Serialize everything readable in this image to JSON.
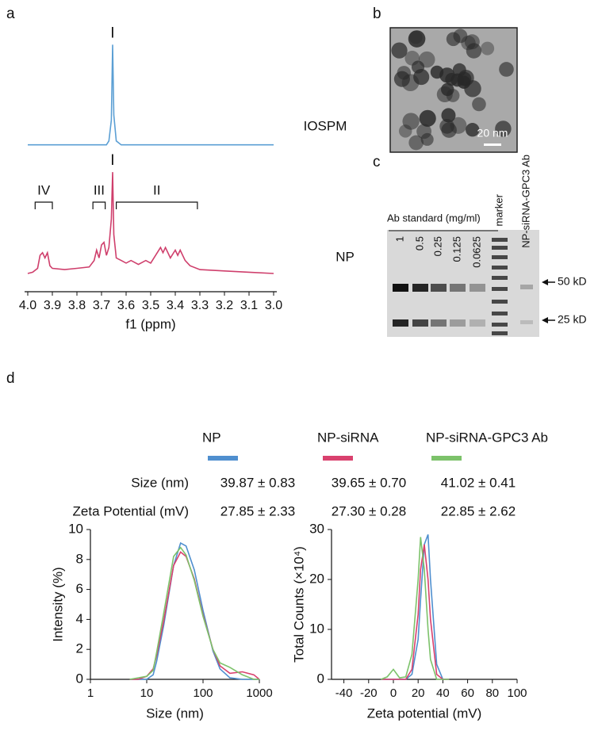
{
  "panels": [
    "a",
    "b",
    "c",
    "d"
  ],
  "tem": {
    "scale_bar": "20 nm"
  },
  "gel": {
    "title": "Ab standard (mg/ml)",
    "lanes": [
      "1",
      "0.5",
      "0.25",
      "0.125",
      "0.0625",
      "marker",
      "NP-siRNA-GPC3 Ab"
    ],
    "markers": [
      "50 kD",
      "25 kD"
    ]
  },
  "table": {
    "rows": [
      [
        "Size (nm)",
        "39.87 ± 0.83",
        "39.65 ± 0.70",
        "41.02 ± 0.41"
      ],
      [
        "Zeta Potential (mV)",
        "27.85 ± 2.33",
        "27.30 ± 0.28",
        "22.85 ± 2.62"
      ]
    ]
  },
  "chart_data": [
    {
      "type": "line",
      "xlabel": "f1 (ppm)",
      "x": [
        4.0,
        3.98,
        3.96,
        3.95,
        3.94,
        3.93,
        3.92,
        3.91,
        3.9,
        3.85,
        3.8,
        3.75,
        3.73,
        3.72,
        3.71,
        3.7,
        3.69,
        3.68,
        3.67,
        3.66,
        3.655,
        3.65,
        3.64,
        3.62,
        3.6,
        3.58,
        3.55,
        3.52,
        3.5,
        3.48,
        3.46,
        3.45,
        3.44,
        3.42,
        3.4,
        3.39,
        3.38,
        3.36,
        3.34,
        3.3,
        3.2,
        3.1,
        3.0
      ],
      "xlim": [
        4.0,
        3.0
      ],
      "xticks": [
        {
          "value": 4.0,
          "label": "4.0"
        },
        3.9,
        3.8,
        3.7,
        3.6,
        3.5,
        3.4,
        3.3,
        3.2,
        3.1,
        {
          "value": 3.0,
          "label": "3.0"
        }
      ],
      "ylim": [
        0,
        100
      ],
      "series": [
        {
          "name": "IOSPM",
          "color": "#5b9fd4",
          "peak_label": {
            "label": "I",
            "x": 3.655
          },
          "values": [
            56.5,
            56.5,
            56.5,
            56.5,
            56.5,
            56.5,
            56.5,
            56.5,
            56.5,
            56.5,
            56.5,
            56.5,
            56.5,
            56.5,
            56.5,
            56.5,
            56.5,
            56.5,
            58,
            66,
            95,
            68,
            58,
            56.5,
            56.5,
            56.5,
            56.5,
            56.5,
            56.5,
            56.5,
            56.5,
            56.5,
            56.5,
            56.5,
            56.5,
            56.5,
            56.5,
            56.5,
            56.5,
            56.5,
            56.5,
            56.5,
            56.5
          ]
        },
        {
          "name": "NP",
          "color": "#cf3f6c",
          "peak_label": {
            "label": "I",
            "x": 3.655
          },
          "values": [
            7,
            7.5,
            9,
            14,
            15,
            13,
            15,
            10,
            9,
            8.5,
            9,
            9.5,
            12,
            16,
            13,
            18,
            19,
            14,
            17,
            28,
            46,
            22,
            13,
            12,
            11,
            12,
            10.5,
            12,
            11,
            14,
            17,
            15,
            17,
            13,
            16,
            14,
            16,
            12,
            10,
            8.5,
            8,
            7.5,
            7
          ]
        }
      ],
      "brackets": [
        {
          "label": "IV",
          "x": [
            3.97,
            3.9
          ]
        },
        {
          "label": "III",
          "x": [
            3.735,
            3.685
          ]
        },
        {
          "label": "II",
          "x": [
            3.64,
            3.31
          ]
        }
      ]
    },
    {
      "type": "line",
      "xlabel": "Size (nm)",
      "ylabel": "Intensity (%)",
      "xlog": true,
      "x": [
        5,
        7,
        10,
        13,
        15,
        20,
        30,
        40,
        50,
        70,
        100,
        150,
        200,
        300,
        500,
        800,
        1000
      ],
      "xlim": [
        1,
        1000
      ],
      "xticks": [
        1,
        10,
        100,
        1000
      ],
      "ylim": [
        0,
        10
      ],
      "yticks": [
        0,
        2,
        4,
        6,
        8,
        10
      ],
      "series": [
        {
          "name": "NP",
          "color": "#4f8fcf",
          "values": [
            0,
            0,
            0,
            0.3,
            1.2,
            3.6,
            7.6,
            9.1,
            8.9,
            7.3,
            4.6,
            1.9,
            0.7,
            0.1,
            0,
            0,
            0
          ]
        },
        {
          "name": "NP-siRNA",
          "color": "#d9416e",
          "values": [
            0,
            0,
            0.2,
            0.7,
            1.6,
            3.9,
            7.6,
            8.5,
            8.2,
            6.7,
            4.3,
            2.0,
            0.9,
            0.4,
            0.5,
            0.3,
            0
          ]
        },
        {
          "name": "NP-siRNA-GPC3 Ab",
          "color": "#7cc26a",
          "values": [
            0,
            0.1,
            0.2,
            0.6,
            1.8,
            4.4,
            8.2,
            8.8,
            8.3,
            6.6,
            4.2,
            2.0,
            1.1,
            0.8,
            0.3,
            0,
            0
          ]
        }
      ]
    },
    {
      "type": "line",
      "xlabel": "Zeta potential (mV)",
      "ylabel": "Total Counts (×10⁴)",
      "x": [
        -10,
        -5,
        0,
        5,
        10,
        15,
        20,
        22,
        25,
        28,
        30,
        35,
        40,
        45
      ],
      "xlim": [
        -50,
        100
      ],
      "xticks": [
        -40,
        -20,
        0,
        20,
        40,
        60,
        80,
        100
      ],
      "ylim": [
        0,
        30
      ],
      "yticks": [
        0,
        10,
        20,
        30
      ],
      "series": [
        {
          "color": "#4f8fcf",
          "values": [
            0,
            0,
            0,
            0,
            0,
            1,
            8,
            16,
            27,
            29,
            20,
            3,
            0,
            0
          ]
        },
        {
          "color": "#d9416e",
          "values": [
            0,
            0,
            0,
            0,
            0,
            2,
            13,
            22,
            27,
            20,
            12,
            1,
            0,
            0
          ]
        },
        {
          "color": "#7cc26a",
          "values": [
            0,
            0.5,
            2,
            0.3,
            0.5,
            5,
            20,
            28.5,
            22,
            10,
            4,
            0,
            0,
            0
          ]
        }
      ]
    }
  ]
}
